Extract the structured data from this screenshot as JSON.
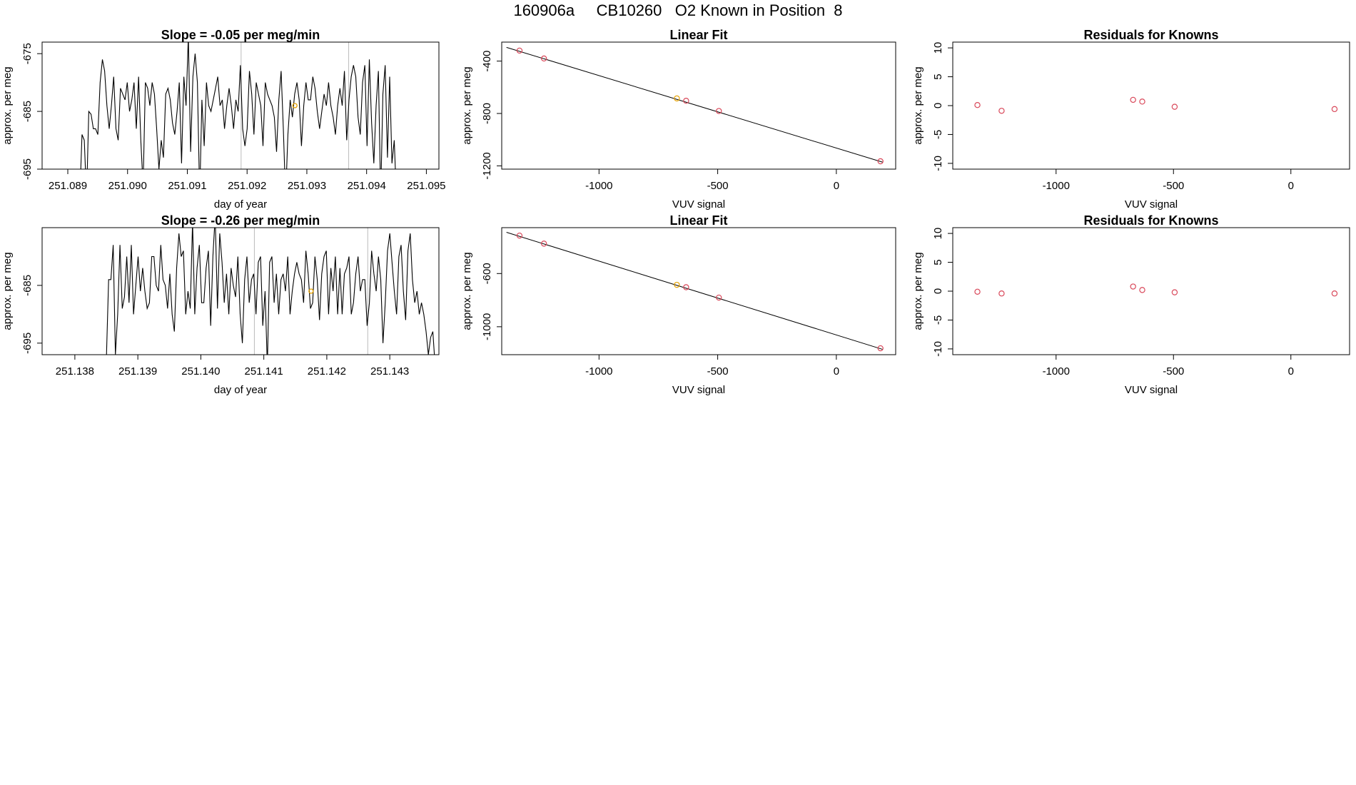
{
  "figure_title": "160906a     CB10260   O2 Known in Position  8",
  "colors": {
    "line": "#000000",
    "known_point": "#e6a100",
    "residual_point": "#d9485a",
    "fit_point": "#d9485a",
    "marker_line": "#bbbbbb",
    "frame": "#000000"
  },
  "chart_data": [
    {
      "id": "ts1",
      "type": "line",
      "title": "Slope =  -0.05  per meg/min",
      "xlabel": "day of year",
      "ylabel": "approx. per meg",
      "xlim": [
        251.08857,
        251.09521
      ],
      "ylim": [
        -695,
        -673
      ],
      "xticks": [
        "251.089",
        "251.090",
        "251.091",
        "251.092",
        "251.093",
        "251.094",
        "251.095"
      ],
      "yticks": [
        "-675",
        "-685",
        "-695"
      ],
      "vlines": [
        251.0919,
        251.0937
      ],
      "known_marker": {
        "x": 251.0928,
        "y": -684
      },
      "x_start": 251.0892,
      "x_end": 251.0945,
      "values": [
        -700,
        -689,
        -690,
        -700,
        -685,
        -685.5,
        -688,
        -688,
        -689,
        -680,
        -676,
        -678,
        -684,
        -688,
        -684,
        -679,
        -688,
        -690,
        -681,
        -682,
        -683,
        -680,
        -685,
        -683,
        -680,
        -688,
        -679,
        -690,
        -698,
        -680,
        -681,
        -684,
        -680,
        -682,
        -688,
        -695,
        -690,
        -693,
        -682,
        -681,
        -683,
        -687,
        -689,
        -685,
        -680,
        -694,
        -679,
        -684,
        -672,
        -692,
        -679,
        -675,
        -680,
        -700,
        -683,
        -691,
        -680,
        -684,
        -685,
        -683,
        -681,
        -679,
        -684,
        -683,
        -688,
        -684,
        -681,
        -684,
        -688,
        -683,
        -685,
        -677,
        -688,
        -691,
        -688,
        -678,
        -682,
        -689,
        -680,
        -682,
        -684,
        -691,
        -680,
        -682,
        -683,
        -684,
        -686,
        -692,
        -683,
        -678,
        -688,
        -700,
        -689,
        -683,
        -686,
        -682,
        -680,
        -683,
        -691,
        -684,
        -680,
        -683,
        -683,
        -679,
        -681,
        -685,
        -688,
        -685,
        -682,
        -684,
        -680,
        -684,
        -686,
        -689,
        -684,
        -681,
        -684,
        -678,
        -690,
        -683,
        -679,
        -677,
        -679,
        -686,
        -689,
        -680,
        -677,
        -691,
        -676,
        -687,
        -694,
        -684,
        -678,
        -700,
        -682,
        -677,
        -693,
        -679,
        -694,
        -690,
        -700
      ]
    },
    {
      "id": "fit1",
      "type": "scatter",
      "title": "Linear Fit",
      "xlabel": "VUV signal",
      "ylabel": "approx. per meg",
      "xlim": [
        -1410,
        250
      ],
      "ylim": [
        -1225,
        -255
      ],
      "xticks": [
        -1000,
        -500,
        0
      ],
      "yticks": [
        -400,
        -800,
        -1200
      ],
      "points": [
        {
          "x": -1335,
          "y": -320,
          "known": false
        },
        {
          "x": -1232,
          "y": -380,
          "known": false
        },
        {
          "x": -672,
          "y": -685,
          "known": true
        },
        {
          "x": -633,
          "y": -703,
          "known": false
        },
        {
          "x": -495,
          "y": -781,
          "known": false
        },
        {
          "x": 186,
          "y": -1165,
          "known": false
        }
      ],
      "fit_line": {
        "x": [
          -1390,
          195
        ],
        "y": [
          -295,
          -1172
        ]
      }
    },
    {
      "id": "res1",
      "type": "scatter",
      "title": "Residuals for Knowns",
      "xlabel": "VUV signal",
      "ylabel": "approx. per meg",
      "xlim": [
        -1440,
        250
      ],
      "ylim": [
        -11,
        11
      ],
      "xticks": [
        -1000,
        -500,
        0
      ],
      "yticks": [
        10,
        5,
        0,
        -5,
        -10
      ],
      "points": [
        {
          "x": -1335,
          "y": 0.1
        },
        {
          "x": -1232,
          "y": -0.9
        },
        {
          "x": -672,
          "y": 1.0
        },
        {
          "x": -633,
          "y": 0.7
        },
        {
          "x": -495,
          "y": -0.2
        },
        {
          "x": 186,
          "y": -0.6
        }
      ]
    },
    {
      "id": "ts2",
      "type": "line",
      "title": "Slope =  -0.26  per meg/min",
      "xlabel": "day of year",
      "ylabel": "approx. per meg",
      "xlim": [
        251.13748,
        251.14378
      ],
      "ylim": [
        -697,
        -675
      ],
      "xticks": [
        "251.138",
        "251.139",
        "251.140",
        "251.141",
        "251.142",
        "251.143"
      ],
      "yticks": [
        "-685",
        "-695"
      ],
      "vlines": [
        251.14085,
        251.14265
      ],
      "known_marker": {
        "x": 251.14175,
        "y": -686
      },
      "x_start": 251.1385,
      "x_end": 251.14372,
      "values": [
        -698,
        -684,
        -684,
        -678,
        -697,
        -690,
        -678,
        -689,
        -687,
        -680,
        -688,
        -678,
        -690,
        -685,
        -680,
        -686,
        -682,
        -686,
        -689,
        -688,
        -680,
        -680,
        -685,
        -686,
        -678,
        -684,
        -685,
        -689,
        -683,
        -690,
        -693,
        -682,
        -676,
        -680,
        -679,
        -690,
        -686,
        -689,
        -674,
        -690,
        -682,
        -678,
        -688,
        -688,
        -682,
        -679,
        -692,
        -680,
        -673,
        -689,
        -676,
        -681,
        -688,
        -683,
        -690,
        -682,
        -685,
        -687,
        -680,
        -690,
        -695,
        -684,
        -680,
        -688,
        -684,
        -683,
        -690,
        -681,
        -680,
        -692,
        -686,
        -699,
        -681,
        -680,
        -688,
        -683,
        -690,
        -684,
        -683,
        -686,
        -680,
        -690,
        -686,
        -683,
        -681,
        -683,
        -684,
        -688,
        -679,
        -683,
        -689,
        -688,
        -680,
        -684,
        -691,
        -683,
        -680,
        -679,
        -690,
        -682,
        -686,
        -680,
        -690,
        -682,
        -690,
        -683,
        -682,
        -680,
        -690,
        -688,
        -683,
        -680,
        -686,
        -684,
        -684,
        -692,
        -688,
        -679,
        -683,
        -686,
        -680,
        -684,
        -695,
        -688,
        -679,
        -676,
        -681,
        -686,
        -690,
        -680,
        -678,
        -686,
        -691,
        -679,
        -676,
        -684,
        -688,
        -686,
        -690,
        -688,
        -690,
        -693,
        -697,
        -694,
        -693,
        -699
      ]
    },
    {
      "id": "fit2",
      "type": "scatter",
      "title": "Linear Fit",
      "xlabel": "VUV signal",
      "ylabel": "approx. per meg",
      "xlim": [
        -1410,
        250
      ],
      "ylim": [
        -1210,
        -255
      ],
      "xticks": [
        -1000,
        -500,
        0
      ],
      "yticks": [
        -600,
        -1000
      ],
      "points": [
        {
          "x": -1335,
          "y": -315,
          "known": false
        },
        {
          "x": -1232,
          "y": -375,
          "known": false
        },
        {
          "x": -672,
          "y": -685,
          "known": true
        },
        {
          "x": -633,
          "y": -703,
          "known": false
        },
        {
          "x": -495,
          "y": -781,
          "known": false
        },
        {
          "x": 186,
          "y": -1162,
          "known": false
        }
      ],
      "fit_line": {
        "x": [
          -1390,
          195
        ],
        "y": [
          -290,
          -1170
        ]
      }
    },
    {
      "id": "res2",
      "type": "scatter",
      "title": "Residuals for Knowns",
      "xlabel": "VUV signal",
      "ylabel": "approx. per meg",
      "xlim": [
        -1440,
        250
      ],
      "ylim": [
        -11,
        11
      ],
      "xticks": [
        -1000,
        -500,
        0
      ],
      "yticks": [
        10,
        5,
        0,
        -5,
        -10
      ],
      "points": [
        {
          "x": -1335,
          "y": -0.1
        },
        {
          "x": -1232,
          "y": -0.4
        },
        {
          "x": -672,
          "y": 0.8
        },
        {
          "x": -633,
          "y": 0.2
        },
        {
          "x": -495,
          "y": -0.2
        },
        {
          "x": 186,
          "y": -0.4
        }
      ]
    }
  ]
}
